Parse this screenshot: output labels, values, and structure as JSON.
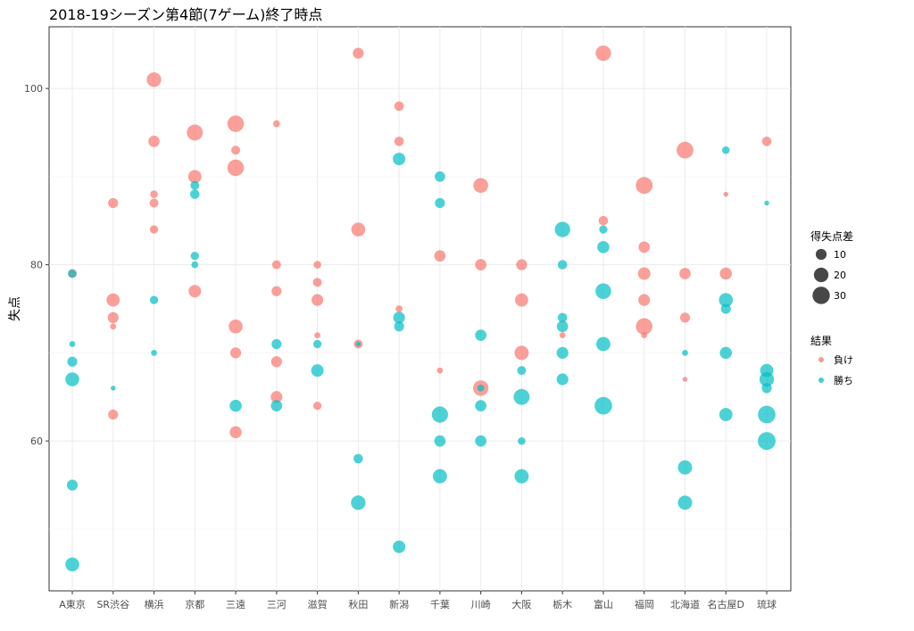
{
  "chart_data": {
    "type": "scatter",
    "title": "2018-19シーズン第4節(7ゲーム)終了時点",
    "ylabel": "失点",
    "xlabel": "",
    "ylim": [
      43,
      107
    ],
    "yticks": [
      60,
      80,
      100
    ],
    "grid": true,
    "legend_position": "right",
    "categories": [
      "A東京",
      "SR渋谷",
      "横浜",
      "京都",
      "三遠",
      "三河",
      "滋賀",
      "秋田",
      "新潟",
      "千葉",
      "川崎",
      "大阪",
      "栃木",
      "富山",
      "福岡",
      "北海道",
      "名古屋D",
      "琉球"
    ],
    "colors": {
      "loss": "#F8766D",
      "win": "#00BFC4"
    },
    "size_legend": {
      "title": "得失点差",
      "values": [
        10,
        20,
        30
      ]
    },
    "color_legend": {
      "title": "結果",
      "loss_label": "負け",
      "win_label": "勝ち"
    },
    "points": [
      {
        "team": "A東京",
        "y": 79,
        "diff": 6,
        "result": "loss"
      },
      {
        "team": "A東京",
        "y": 79,
        "diff": 5,
        "result": "win"
      },
      {
        "team": "A東京",
        "y": 71,
        "diff": 2,
        "result": "win"
      },
      {
        "team": "A東京",
        "y": 69,
        "diff": 8,
        "result": "win"
      },
      {
        "team": "A東京",
        "y": 67,
        "diff": 18,
        "result": "win"
      },
      {
        "team": "A東京",
        "y": 55,
        "diff": 10,
        "result": "win"
      },
      {
        "team": "A東京",
        "y": 46,
        "diff": 18,
        "result": "win"
      },
      {
        "team": "SR渋谷",
        "y": 87,
        "diff": 8,
        "result": "loss"
      },
      {
        "team": "SR渋谷",
        "y": 76,
        "diff": 16,
        "result": "loss"
      },
      {
        "team": "SR渋谷",
        "y": 74,
        "diff": 10,
        "result": "loss"
      },
      {
        "team": "SR渋谷",
        "y": 73,
        "diff": 2,
        "result": "loss"
      },
      {
        "team": "SR渋谷",
        "y": 66,
        "diff": 1,
        "result": "win"
      },
      {
        "team": "SR渋谷",
        "y": 63,
        "diff": 8,
        "result": "loss"
      },
      {
        "team": "横浜",
        "y": 101,
        "diff": 20,
        "result": "loss"
      },
      {
        "team": "横浜",
        "y": 94,
        "diff": 11,
        "result": "loss"
      },
      {
        "team": "横浜",
        "y": 88,
        "diff": 4,
        "result": "loss"
      },
      {
        "team": "横浜",
        "y": 87,
        "diff": 6,
        "result": "loss"
      },
      {
        "team": "横浜",
        "y": 84,
        "diff": 5,
        "result": "loss"
      },
      {
        "team": "横浜",
        "y": 76,
        "diff": 5,
        "result": "win"
      },
      {
        "team": "横浜",
        "y": 70,
        "diff": 2,
        "result": "win"
      },
      {
        "team": "京都",
        "y": 95,
        "diff": 25,
        "result": "loss"
      },
      {
        "team": "京都",
        "y": 90,
        "diff": 16,
        "result": "loss"
      },
      {
        "team": "京都",
        "y": 89,
        "diff": 6,
        "result": "win"
      },
      {
        "team": "京都",
        "y": 88,
        "diff": 7,
        "result": "win"
      },
      {
        "team": "京都",
        "y": 81,
        "diff": 5,
        "result": "win"
      },
      {
        "team": "京都",
        "y": 80,
        "diff": 3,
        "result": "win"
      },
      {
        "team": "京都",
        "y": 77,
        "diff": 14,
        "result": "loss"
      },
      {
        "team": "三遠",
        "y": 96,
        "diff": 27,
        "result": "loss"
      },
      {
        "team": "三遠",
        "y": 93,
        "diff": 6,
        "result": "loss"
      },
      {
        "team": "三遠",
        "y": 91,
        "diff": 27,
        "result": "loss"
      },
      {
        "team": "三遠",
        "y": 73,
        "diff": 18,
        "result": "loss"
      },
      {
        "team": "三遠",
        "y": 70,
        "diff": 10,
        "result": "loss"
      },
      {
        "team": "三遠",
        "y": 64,
        "diff": 13,
        "result": "win"
      },
      {
        "team": "三遠",
        "y": 61,
        "diff": 13,
        "result": "loss"
      },
      {
        "team": "三河",
        "y": 96,
        "diff": 3,
        "result": "loss"
      },
      {
        "team": "三河",
        "y": 80,
        "diff": 6,
        "result": "loss"
      },
      {
        "team": "三河",
        "y": 77,
        "diff": 8,
        "result": "loss"
      },
      {
        "team": "三河",
        "y": 71,
        "diff": 8,
        "result": "win"
      },
      {
        "team": "三河",
        "y": 69,
        "diff": 10,
        "result": "loss"
      },
      {
        "team": "三河",
        "y": 65,
        "diff": 12,
        "result": "loss"
      },
      {
        "team": "三河",
        "y": 64,
        "diff": 11,
        "result": "win"
      },
      {
        "team": "滋賀",
        "y": 80,
        "diff": 4,
        "result": "loss"
      },
      {
        "team": "滋賀",
        "y": 78,
        "diff": 6,
        "result": "loss"
      },
      {
        "team": "滋賀",
        "y": 76,
        "diff": 12,
        "result": "loss"
      },
      {
        "team": "滋賀",
        "y": 72,
        "diff": 2,
        "result": "loss"
      },
      {
        "team": "滋賀",
        "y": 71,
        "diff": 5,
        "result": "win"
      },
      {
        "team": "滋賀",
        "y": 68,
        "diff": 14,
        "result": "win"
      },
      {
        "team": "滋賀",
        "y": 64,
        "diff": 5,
        "result": "loss"
      },
      {
        "team": "秋田",
        "y": 104,
        "diff": 10,
        "result": "loss"
      },
      {
        "team": "秋田",
        "y": 84,
        "diff": 18,
        "result": "loss"
      },
      {
        "team": "秋田",
        "y": 71,
        "diff": 6,
        "result": "loss"
      },
      {
        "team": "秋田",
        "y": 71,
        "diff": 1,
        "result": "win"
      },
      {
        "team": "秋田",
        "y": 58,
        "diff": 7,
        "result": "win"
      },
      {
        "team": "秋田",
        "y": 53,
        "diff": 20,
        "result": "win"
      },
      {
        "team": "新潟",
        "y": 98,
        "diff": 7,
        "result": "loss"
      },
      {
        "team": "新潟",
        "y": 94,
        "diff": 7,
        "result": "loss"
      },
      {
        "team": "新潟",
        "y": 92,
        "diff": 14,
        "result": "win"
      },
      {
        "team": "新潟",
        "y": 75,
        "diff": 3,
        "result": "loss"
      },
      {
        "team": "新潟",
        "y": 74,
        "diff": 12,
        "result": "win"
      },
      {
        "team": "新潟",
        "y": 73,
        "diff": 8,
        "result": "win"
      },
      {
        "team": "新潟",
        "y": 48,
        "diff": 14,
        "result": "win"
      },
      {
        "team": "千葉",
        "y": 90,
        "diff": 9,
        "result": "win"
      },
      {
        "team": "千葉",
        "y": 87,
        "diff": 8,
        "result": "win"
      },
      {
        "team": "千葉",
        "y": 81,
        "diff": 11,
        "result": "loss"
      },
      {
        "team": "千葉",
        "y": 68,
        "diff": 2,
        "result": "loss"
      },
      {
        "team": "千葉",
        "y": 63,
        "diff": 26,
        "result": "win"
      },
      {
        "team": "千葉",
        "y": 60,
        "diff": 11,
        "result": "win"
      },
      {
        "team": "千葉",
        "y": 56,
        "diff": 19,
        "result": "win"
      },
      {
        "team": "川崎",
        "y": 89,
        "diff": 21,
        "result": "loss"
      },
      {
        "team": "川崎",
        "y": 80,
        "diff": 11,
        "result": "loss"
      },
      {
        "team": "川崎",
        "y": 72,
        "diff": 11,
        "result": "win"
      },
      {
        "team": "川崎",
        "y": 66,
        "diff": 23,
        "result": "loss"
      },
      {
        "team": "川崎",
        "y": 66,
        "diff": 3,
        "result": "win"
      },
      {
        "team": "川崎",
        "y": 64,
        "diff": 11,
        "result": "win"
      },
      {
        "team": "川崎",
        "y": 60,
        "diff": 11,
        "result": "win"
      },
      {
        "team": "大阪",
        "y": 80,
        "diff": 10,
        "result": "loss"
      },
      {
        "team": "大阪",
        "y": 76,
        "diff": 16,
        "result": "loss"
      },
      {
        "team": "大阪",
        "y": 70,
        "diff": 19,
        "result": "loss"
      },
      {
        "team": "大阪",
        "y": 68,
        "diff": 6,
        "result": "win"
      },
      {
        "team": "大阪",
        "y": 65,
        "diff": 25,
        "result": "win"
      },
      {
        "team": "大阪",
        "y": 60,
        "diff": 4,
        "result": "win"
      },
      {
        "team": "大阪",
        "y": 56,
        "diff": 19,
        "result": "win"
      },
      {
        "team": "栃木",
        "y": 84,
        "diff": 23,
        "result": "win"
      },
      {
        "team": "栃木",
        "y": 80,
        "diff": 7,
        "result": "win"
      },
      {
        "team": "栃木",
        "y": 74,
        "diff": 7,
        "result": "win"
      },
      {
        "team": "栃木",
        "y": 73,
        "diff": 11,
        "result": "win"
      },
      {
        "team": "栃木",
        "y": 72,
        "diff": 2,
        "result": "loss"
      },
      {
        "team": "栃木",
        "y": 70,
        "diff": 12,
        "result": "win"
      },
      {
        "team": "栃木",
        "y": 67,
        "diff": 12,
        "result": "win"
      },
      {
        "team": "富山",
        "y": 104,
        "diff": 23,
        "result": "loss"
      },
      {
        "team": "富山",
        "y": 85,
        "diff": 7,
        "result": "loss"
      },
      {
        "team": "富山",
        "y": 84,
        "diff": 5,
        "result": "win"
      },
      {
        "team": "富山",
        "y": 82,
        "diff": 13,
        "result": "win"
      },
      {
        "team": "富山",
        "y": 77,
        "diff": 24,
        "result": "win"
      },
      {
        "team": "富山",
        "y": 71,
        "diff": 19,
        "result": "win"
      },
      {
        "team": "富山",
        "y": 64,
        "diff": 31,
        "result": "win"
      },
      {
        "team": "福岡",
        "y": 89,
        "diff": 28,
        "result": "loss"
      },
      {
        "team": "福岡",
        "y": 82,
        "diff": 11,
        "result": "loss"
      },
      {
        "team": "福岡",
        "y": 79,
        "diff": 14,
        "result": "loss"
      },
      {
        "team": "福岡",
        "y": 76,
        "diff": 12,
        "result": "loss"
      },
      {
        "team": "福岡",
        "y": 73,
        "diff": 27,
        "result": "loss"
      },
      {
        "team": "福岡",
        "y": 72,
        "diff": 2,
        "result": "loss"
      },
      {
        "team": "北海道",
        "y": 93,
        "diff": 28,
        "result": "loss"
      },
      {
        "team": "北海道",
        "y": 79,
        "diff": 11,
        "result": "loss"
      },
      {
        "team": "北海道",
        "y": 74,
        "diff": 8,
        "result": "loss"
      },
      {
        "team": "北海道",
        "y": 70,
        "diff": 2,
        "result": "win"
      },
      {
        "team": "北海道",
        "y": 67,
        "diff": 1,
        "result": "loss"
      },
      {
        "team": "北海道",
        "y": 57,
        "diff": 19,
        "result": "win"
      },
      {
        "team": "北海道",
        "y": 53,
        "diff": 19,
        "result": "win"
      },
      {
        "team": "名古屋D",
        "y": 93,
        "diff": 4,
        "result": "win"
      },
      {
        "team": "名古屋D",
        "y": 88,
        "diff": 1,
        "result": "loss"
      },
      {
        "team": "名古屋D",
        "y": 79,
        "diff": 13,
        "result": "loss"
      },
      {
        "team": "名古屋D",
        "y": 76,
        "diff": 18,
        "result": "win"
      },
      {
        "team": "名古屋D",
        "y": 75,
        "diff": 8,
        "result": "win"
      },
      {
        "team": "名古屋D",
        "y": 70,
        "diff": 13,
        "result": "win"
      },
      {
        "team": "名古屋D",
        "y": 63,
        "diff": 16,
        "result": "win"
      },
      {
        "team": "琉球",
        "y": 94,
        "diff": 7,
        "result": "loss"
      },
      {
        "team": "琉球",
        "y": 87,
        "diff": 1,
        "result": "win"
      },
      {
        "team": "琉球",
        "y": 68,
        "diff": 16,
        "result": "win"
      },
      {
        "team": "琉球",
        "y": 67,
        "diff": 20,
        "result": "win"
      },
      {
        "team": "琉球",
        "y": 66,
        "diff": 8,
        "result": "win"
      },
      {
        "team": "琉球",
        "y": 63,
        "diff": 31,
        "result": "win"
      },
      {
        "team": "琉球",
        "y": 60,
        "diff": 32,
        "result": "win"
      }
    ]
  }
}
